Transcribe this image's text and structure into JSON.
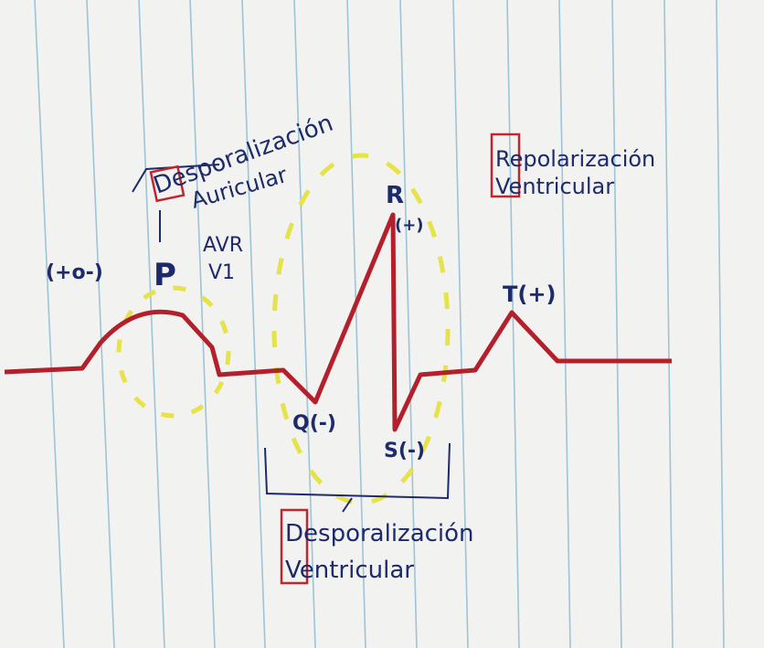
{
  "labels": {
    "atrial": [
      "Desporalización",
      "Auricular"
    ],
    "p_sign": "(+o-)",
    "p": "P",
    "leads": [
      "AVR",
      "V1"
    ],
    "r": "R",
    "r_sign": "(+)",
    "t": "T(+)",
    "q": "Q(-)",
    "s": "S(-)",
    "repolarization": [
      "Repolarización",
      "Ventricular"
    ],
    "ventricular": [
      "Desporalización",
      "Ventricular"
    ]
  }
}
